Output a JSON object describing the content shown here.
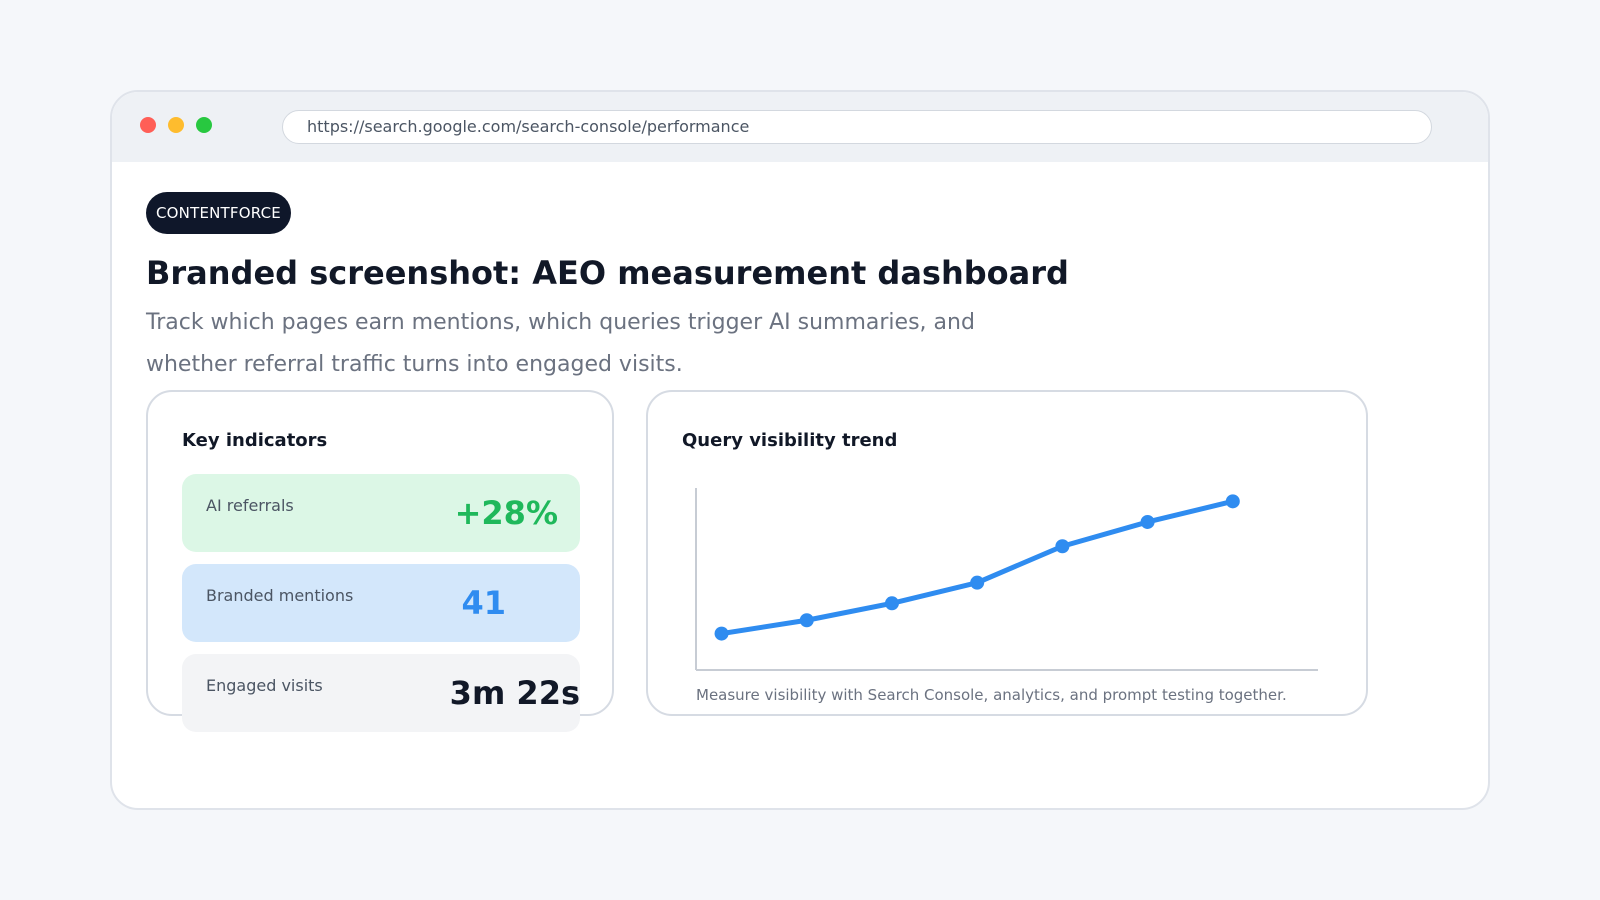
{
  "browser": {
    "url": "https://search.google.com/search-console/performance",
    "traffic_lights": {
      "close": "#ff5f57",
      "minimize": "#febc2e",
      "maximize": "#28c840"
    }
  },
  "brand": {
    "label": "CONTENTFORCE"
  },
  "header": {
    "title": "Branded screenshot: AEO measurement dashboard",
    "subtitle": "Track which pages earn mentions, which queries trigger AI summaries, and whether referral traffic turns into engaged visits."
  },
  "indicators": {
    "title": "Key indicators",
    "items": [
      {
        "label": "AI referrals",
        "value": "+28%",
        "color": "#1fb85b"
      },
      {
        "label": "Branded mentions",
        "value": "41",
        "color": "#2f8cf0"
      },
      {
        "label": "Engaged visits",
        "value": "3m 22s",
        "color": "#111827"
      }
    ]
  },
  "trend": {
    "title": "Query visibility trend",
    "caption": "Measure visibility with Search Console, analytics, and prompt testing together."
  },
  "chart_data": {
    "type": "line",
    "title": "Query visibility trend",
    "x": [
      1,
      2,
      3,
      4,
      5,
      6,
      7
    ],
    "series": [
      {
        "values": [
          2.0,
          3.1,
          4.5,
          6.2,
          9.2,
          11.2,
          12.9
        ],
        "color": "#2f8cf0"
      }
    ],
    "xlim": [
      0.7,
      8.0
    ],
    "ylim": [
      -1.0,
      14.0
    ],
    "grid": false,
    "legend": "none"
  }
}
